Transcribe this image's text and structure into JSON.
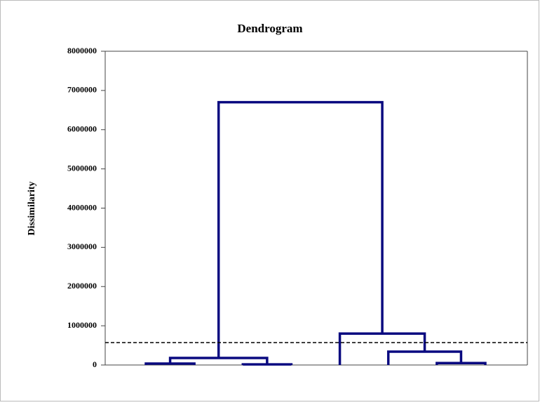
{
  "chart_data": {
    "type": "dendrogram",
    "title": "Dendrogram",
    "y_label": "Dissimilarity",
    "ylim": [
      0,
      8000000
    ],
    "yticks": [
      0,
      1000000,
      2000000,
      3000000,
      4000000,
      5000000,
      6000000,
      7000000,
      8000000
    ],
    "color": "#0a0a80",
    "leaf_count": 8,
    "merges": [
      {
        "children": [
          0,
          1
        ],
        "height": 35000
      },
      {
        "children": [
          2,
          3
        ],
        "height": 15000
      },
      {
        "children": [
          6,
          7
        ],
        "height": 50000
      },
      {
        "children": [
          5,
          10
        ],
        "height": 340000
      },
      {
        "children": [
          8,
          9
        ],
        "height": 180000
      },
      {
        "children": [
          4,
          11
        ],
        "height": 800000
      },
      {
        "children": [
          12,
          13
        ],
        "height": 6700000
      }
    ],
    "cut_height": 570000
  }
}
